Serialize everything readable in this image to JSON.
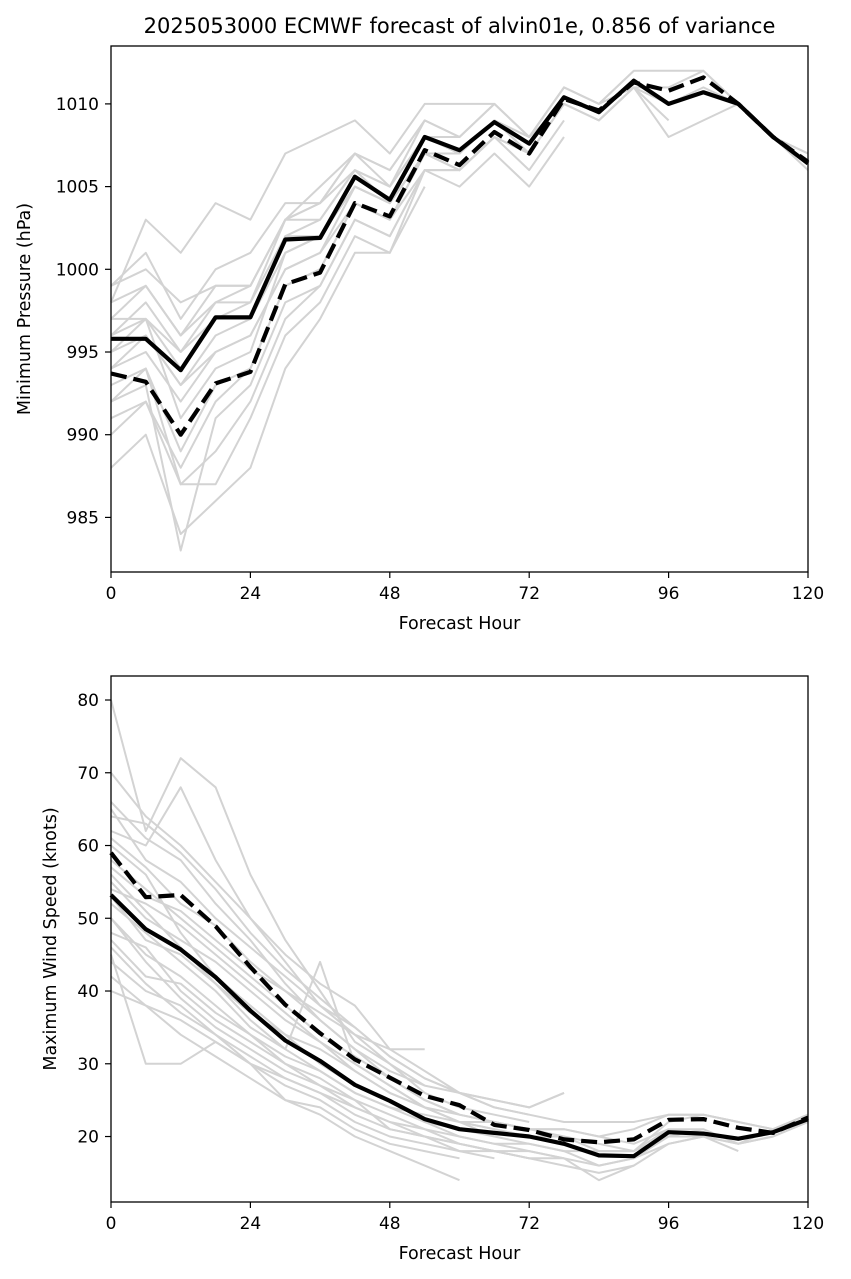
{
  "chart_data": [
    {
      "type": "line",
      "title": "2025053000 ECMWF forecast of alvin01e, 0.856 of variance",
      "xlabel": "Forecast Hour",
      "ylabel": "Minimum Pressure (hPa)",
      "xlim": [
        0,
        120
      ],
      "ylim": [
        981.7,
        1013.5
      ],
      "xticks": [
        0,
        24,
        48,
        72,
        96,
        120
      ],
      "yticks": [
        985,
        990,
        995,
        1000,
        1005,
        1010
      ],
      "grid": false,
      "x": [
        0,
        6,
        12,
        18,
        24,
        30,
        36,
        42,
        48,
        54,
        60,
        66,
        72,
        78,
        84,
        90,
        96,
        102,
        108,
        114,
        120
      ],
      "series": [
        {
          "style": "solid",
          "color": "#000000",
          "values": [
            995.8,
            995.8,
            993.9,
            997.1,
            997.1,
            1001.8,
            1001.9,
            1005.6,
            1004.2,
            1008.0,
            1007.2,
            1008.9,
            1007.6,
            1010.4,
            1009.5,
            1011.4,
            1010.0,
            1010.7,
            1010.0,
            1008.0,
            1006.4
          ]
        },
        {
          "style": "dashed",
          "color": "#000000",
          "values": [
            993.7,
            993.2,
            990.0,
            993.1,
            993.8,
            999.1,
            999.8,
            1004.0,
            1003.2,
            1007.2,
            1006.3,
            1008.3,
            1007.0,
            1010.3,
            1009.6,
            1011.3,
            1010.8,
            1011.6,
            1010.0,
            1008.0,
            1006.5
          ]
        }
      ],
      "ensemble_color": "#d3d3d3",
      "ensemble": [
        [
          997,
          999,
          996,
          998,
          999,
          1003,
          1005,
          1007,
          1006,
          1009,
          1008,
          1010,
          1008,
          1011,
          1010,
          1012
        ],
        [
          995,
          996,
          993,
          996,
          997,
          1002,
          1003,
          1006,
          1004,
          1008,
          1007,
          1009,
          1007,
          1010,
          1009,
          1011,
          1010,
          1011,
          1010,
          1008,
          1006
        ],
        [
          993,
          994,
          989,
          993,
          994,
          999,
          1000,
          1004,
          1003,
          1007,
          1006,
          1008,
          1007,
          1010,
          1009,
          1011,
          1011,
          1012,
          1010,
          1008,
          1007
        ],
        [
          999,
          1001,
          997,
          1000,
          1001,
          1004,
          1004,
          1007,
          1006,
          1009
        ],
        [
          990,
          992,
          987,
          989,
          992,
          997,
          999,
          1003,
          1002,
          1006,
          1006,
          1008,
          1006,
          1009
        ],
        [
          996,
          998,
          995,
          998,
          998,
          1002,
          1002,
          1005,
          1004,
          1007,
          1006,
          1008
        ],
        [
          998,
          1003,
          1001,
          1004,
          1003,
          1007,
          1008,
          1009,
          1007,
          1010,
          1010,
          1010
        ],
        [
          988,
          990,
          984,
          986,
          988,
          994,
          997,
          1001,
          1001,
          1006,
          1005,
          1007,
          1005,
          1008
        ],
        [
          992,
          993,
          983,
          991,
          993,
          998,
          999,
          1003,
          1002,
          1006
        ],
        [
          994,
          995,
          992,
          995,
          996,
          1000,
          1001,
          1004,
          1003,
          1007,
          1006,
          1008
        ],
        [
          997,
          997,
          994,
          997,
          998,
          1003,
          1004,
          1007,
          1005,
          1008,
          1007,
          1009,
          1008,
          1011,
          1010,
          1011,
          1009
        ],
        [
          991,
          992,
          988,
          992,
          994,
          999,
          1000,
          1004,
          1003,
          1006,
          1006,
          1008,
          1007
        ],
        [
          996,
          997,
          991,
          994,
          995,
          1001,
          1002,
          1005,
          1004,
          1008,
          1007,
          1009
        ],
        [
          999,
          1000,
          998,
          999,
          999,
          1003,
          1004,
          1006,
          1005,
          1009,
          1008,
          1010,
          1008,
          1011,
          1010,
          1012,
          1012,
          1012,
          1010
        ],
        [
          994,
          996,
          993,
          995,
          996,
          1000,
          1001,
          1005,
          1004,
          1007,
          1007,
          1009,
          1007,
          1010
        ],
        [
          995,
          997,
          995,
          997,
          997,
          1001,
          1002,
          1005,
          1004,
          1007,
          1007,
          1009,
          1008,
          1010,
          1009,
          1011,
          1008,
          1009,
          1010,
          1008,
          1007
        ],
        [
          992,
          994,
          987,
          987,
          991,
          996,
          998,
          1002,
          1001,
          1005
        ],
        [
          998,
          999,
          996,
          999,
          999,
          1003,
          1003,
          1006,
          1005,
          1008,
          1008
        ]
      ]
    },
    {
      "type": "line",
      "title": "",
      "xlabel": "Forecast Hour",
      "ylabel": "Maximum Wind Speed (knots)",
      "xlim": [
        0,
        120
      ],
      "ylim": [
        11,
        83.3
      ],
      "xticks": [
        0,
        24,
        48,
        72,
        96,
        120
      ],
      "yticks": [
        20,
        30,
        40,
        50,
        60,
        70,
        80
      ],
      "grid": false,
      "x": [
        0,
        6,
        12,
        18,
        24,
        30,
        36,
        42,
        48,
        54,
        60,
        66,
        72,
        78,
        84,
        90,
        96,
        102,
        108,
        114,
        120
      ],
      "series": [
        {
          "style": "solid",
          "color": "#000000",
          "values": [
            53.2,
            48.5,
            45.7,
            41.9,
            37.3,
            33.2,
            30.4,
            27.1,
            24.9,
            22.4,
            21.0,
            20.5,
            20.0,
            19.0,
            17.4,
            17.3,
            20.6,
            20.4,
            19.7,
            20.6,
            22.4
          ]
        },
        {
          "style": "dashed",
          "color": "#000000",
          "values": [
            59.0,
            52.9,
            53.2,
            48.9,
            43.3,
            38.1,
            34.2,
            30.6,
            28.1,
            25.6,
            24.3,
            21.6,
            20.9,
            19.6,
            19.2,
            19.6,
            22.3,
            22.4,
            21.2,
            20.5,
            22.6
          ]
        }
      ],
      "ensemble_color": "#d3d3d3",
      "ensemble": [
        [
          80,
          62,
          72,
          68,
          56,
          47,
          40,
          33,
          30,
          26,
          24,
          23,
          22
        ],
        [
          70,
          64,
          60,
          55,
          50,
          45,
          41,
          38,
          32,
          29,
          26,
          25,
          24,
          26
        ],
        [
          45,
          30,
          30,
          33,
          30,
          25,
          23,
          20,
          18,
          16,
          14
        ],
        [
          60,
          56,
          48,
          42,
          38,
          34,
          30,
          27,
          25,
          22,
          21,
          20,
          19,
          18,
          16,
          17,
          20,
          21,
          19,
          21,
          23
        ],
        [
          50,
          45,
          42,
          38,
          34,
          31,
          29,
          26,
          24,
          22,
          20,
          19,
          18,
          17,
          14,
          16,
          19,
          20,
          18
        ],
        [
          55,
          50,
          47,
          44,
          40,
          36,
          33,
          30,
          27,
          24,
          22,
          21,
          20,
          20,
          18,
          18,
          22,
          23,
          22
        ],
        [
          47,
          42,
          41,
          37,
          34,
          30,
          28,
          25,
          23,
          21,
          19,
          18,
          17
        ],
        [
          65,
          58,
          55,
          50,
          46,
          42,
          38,
          35,
          31,
          28,
          26,
          24,
          23,
          22,
          22,
          22,
          23,
          23,
          22,
          21,
          23
        ],
        [
          52,
          48,
          44,
          40,
          35,
          32,
          44,
          30,
          27,
          24,
          22,
          20
        ],
        [
          58,
          54,
          50,
          46,
          42,
          38,
          34,
          31,
          28,
          25,
          23
        ],
        [
          44,
          40,
          38,
          34,
          30,
          28,
          26,
          24,
          22,
          20,
          18,
          18,
          17,
          16,
          15,
          16
        ],
        [
          62,
          60,
          68,
          58,
          50,
          44,
          38,
          34,
          32,
          32
        ],
        [
          48,
          46,
          40,
          36,
          33,
          30,
          27,
          25,
          21,
          20,
          19,
          18,
          18,
          17,
          16,
          17,
          19,
          20,
          19,
          20,
          22
        ],
        [
          54,
          52,
          49,
          45,
          41,
          37,
          33,
          29,
          26,
          24,
          22,
          21,
          20
        ],
        [
          56,
          51,
          46,
          41,
          36,
          32,
          29,
          26,
          24,
          23,
          22,
          22,
          21,
          21,
          20,
          19,
          21,
          21
        ],
        [
          42,
          38,
          36,
          33,
          30,
          27,
          25,
          22,
          20,
          19,
          18,
          17
        ],
        [
          66,
          61,
          58,
          52,
          47,
          41,
          36,
          32,
          29,
          27,
          26,
          25,
          24,
          26
        ],
        [
          50,
          44,
          39,
          35,
          32,
          29,
          27,
          24,
          22,
          21,
          20,
          19,
          19,
          18,
          18,
          18,
          20,
          20,
          19,
          20,
          22
        ],
        [
          57,
          53,
          51,
          47,
          43,
          40,
          37,
          34,
          30,
          27
        ],
        [
          46,
          41,
          37,
          34,
          31,
          28,
          26,
          23,
          21,
          20,
          19,
          18,
          17,
          17
        ],
        [
          61,
          57,
          52,
          49,
          44,
          40,
          36,
          32,
          28,
          25,
          23,
          22,
          21,
          21,
          20,
          21,
          23,
          23,
          22,
          21,
          23
        ],
        [
          40,
          38,
          34,
          31,
          28,
          25,
          24,
          21,
          19,
          18,
          17
        ],
        [
          53,
          47,
          45,
          41,
          37,
          34,
          32,
          29,
          26,
          24,
          23,
          22,
          21,
          20,
          19,
          18,
          21
        ],
        [
          64,
          63,
          59,
          54,
          48,
          43,
          39,
          35,
          31,
          28,
          26,
          24,
          23
        ]
      ]
    }
  ]
}
